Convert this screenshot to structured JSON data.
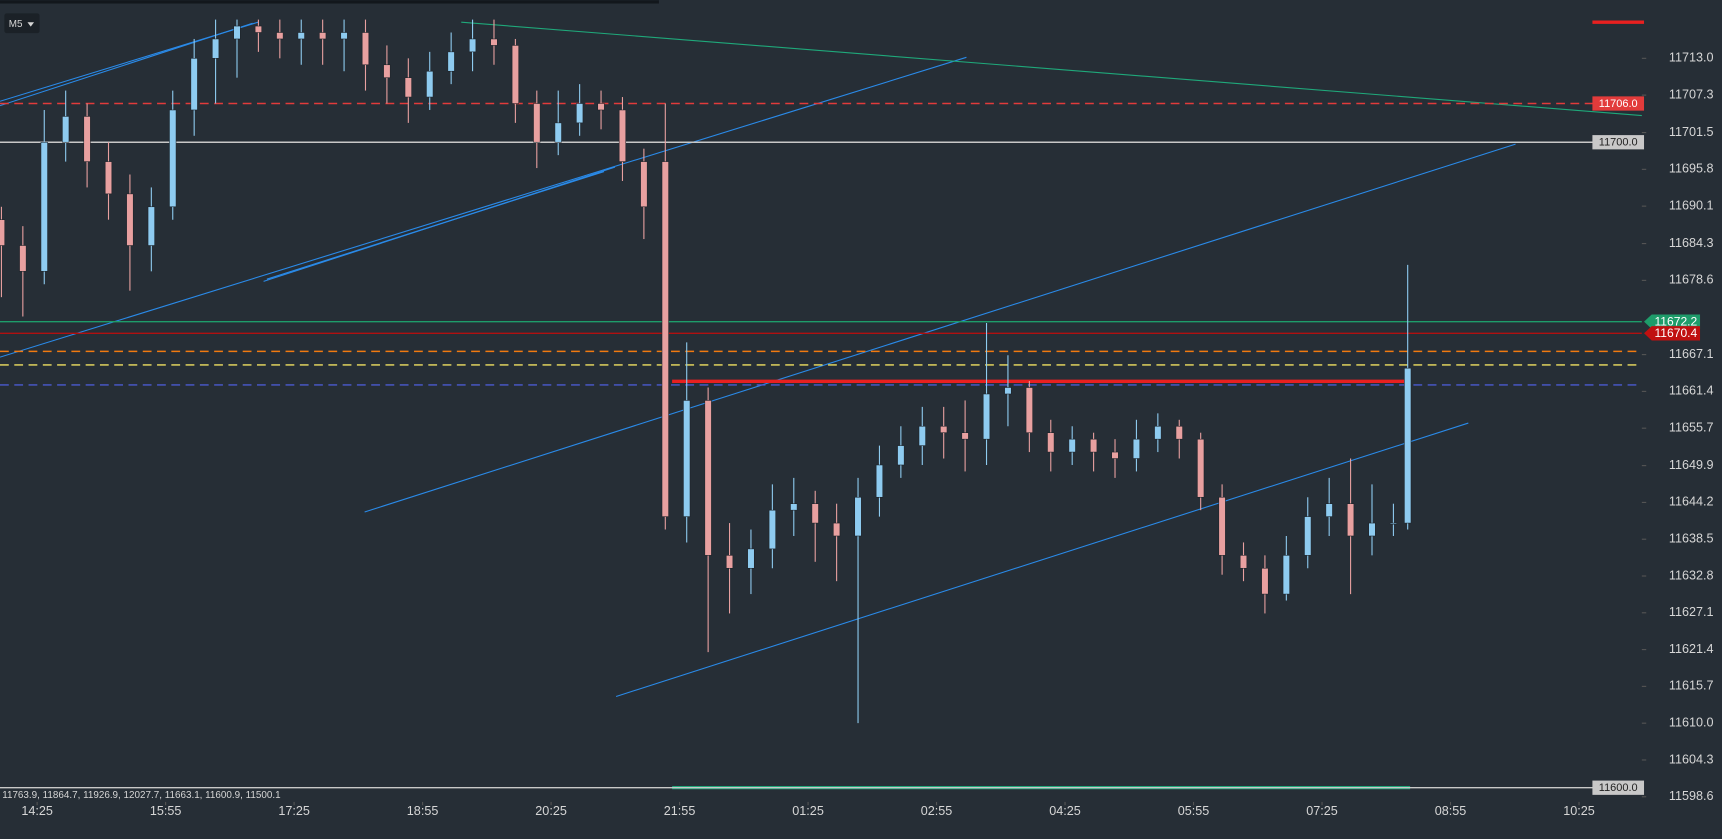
{
  "chart_data": {
    "type": "candlestick",
    "timeframe": "M5",
    "up_color": "#8ecbf0",
    "down_color": "#e8a0a0",
    "x": [
      -5,
      -2,
      1,
      4,
      7,
      10,
      13,
      16,
      19,
      22,
      25,
      28,
      31,
      34,
      37,
      40,
      43,
      46,
      49,
      52,
      55,
      58,
      61,
      64,
      67,
      70,
      73,
      76,
      79,
      82,
      85,
      88,
      91,
      94,
      97,
      100,
      103,
      106,
      109,
      112,
      115,
      118,
      121,
      124,
      127,
      130,
      133,
      136,
      139,
      142,
      145,
      148,
      151,
      154,
      157,
      160,
      163,
      166,
      169,
      172,
      175,
      178,
      181,
      184,
      187,
      190,
      192
    ],
    "open": [
      11688,
      11684,
      11680,
      11700,
      11704,
      11697,
      11692,
      11684,
      11690,
      11705,
      11713,
      11716,
      11718,
      11717,
      11716,
      11717,
      11716,
      11717,
      11712,
      11710,
      11707,
      11711,
      11714,
      11716,
      11715,
      11706,
      11700,
      11703,
      11706,
      11705,
      11697,
      11697,
      11642,
      11660,
      11636,
      11634,
      11637,
      11643,
      11644,
      11641,
      11639,
      11645,
      11650,
      11653,
      11656,
      11655,
      11654,
      11661,
      11662,
      11655,
      11652,
      11654,
      11652,
      11651,
      11654,
      11656,
      11654,
      11645,
      11636,
      11634,
      11630,
      11636,
      11642,
      11644,
      11639,
      11641,
      11641
    ],
    "high": [
      11690,
      11687,
      11705,
      11708,
      11706,
      11700,
      11695,
      11693,
      11708,
      11716,
      11719,
      11719,
      11719,
      11719,
      11719,
      11719,
      11719,
      11719,
      11715,
      11713,
      11714,
      11717,
      11719,
      11719,
      11716,
      11708,
      11708,
      11709,
      11708,
      11707,
      11699,
      11706,
      11669,
      11662,
      11641,
      11640,
      11647,
      11648,
      11646,
      11644,
      11648,
      11653,
      11656,
      11659,
      11659,
      11660,
      11672,
      11667,
      11663,
      11657,
      11656,
      11655,
      11654,
      11657,
      11658,
      11657,
      11655,
      11647,
      11638,
      11636,
      11639,
      11645,
      11648,
      11651,
      11647,
      11644,
      11681
    ],
    "low": [
      11676,
      11673,
      11678,
      11697,
      11693,
      11688,
      11677,
      11680,
      11688,
      11701,
      11706,
      11710,
      11714,
      11713,
      11712,
      11712,
      11711,
      11708,
      11706,
      11703,
      11705,
      11709,
      11711,
      11712,
      11703,
      11696,
      11698,
      11701,
      11702,
      11694,
      11685,
      11640,
      11638,
      11621,
      11627,
      11630,
      11634,
      11639,
      11635,
      11632,
      11610,
      11642,
      11648,
      11650,
      11651,
      11649,
      11650,
      11656,
      11652,
      11649,
      11650,
      11649,
      11648,
      11649,
      11652,
      11651,
      11643,
      11633,
      11632,
      11627,
      11629,
      11634,
      11639,
      11630,
      11636,
      11639,
      11640
    ],
    "close": [
      11684,
      11680,
      11700,
      11704,
      11697,
      11692,
      11684,
      11690,
      11705,
      11713,
      11716,
      11718,
      11717,
      11716,
      11717,
      11716,
      11717,
      11712,
      11710,
      11707,
      11711,
      11714,
      11716,
      11715,
      11706,
      11700,
      11703,
      11706,
      11705,
      11697,
      11690,
      11642,
      11660,
      11636,
      11634,
      11637,
      11643,
      11644,
      11641,
      11639,
      11645,
      11650,
      11653,
      11656,
      11655,
      11654,
      11661,
      11662,
      11655,
      11652,
      11654,
      11652,
      11651,
      11654,
      11656,
      11654,
      11645,
      11636,
      11634,
      11630,
      11636,
      11642,
      11644,
      11639,
      11641,
      11641,
      11665
    ],
    "xlim": [
      -5.2,
      224.8
    ],
    "ylim": [
      11597.8,
      11722
    ],
    "xticks": [
      {
        "value": 0,
        "label": "14:25"
      },
      {
        "value": 18,
        "label": "15:55"
      },
      {
        "value": 36,
        "label": "17:25"
      },
      {
        "value": 54,
        "label": "18:55"
      },
      {
        "value": 72,
        "label": "20:25"
      },
      {
        "value": 90,
        "label": "21:55"
      },
      {
        "value": 108,
        "label": "01:25"
      },
      {
        "value": 126,
        "label": "02:55"
      },
      {
        "value": 144,
        "label": "04:25"
      },
      {
        "value": 162,
        "label": "05:55"
      },
      {
        "value": 180,
        "label": "07:25"
      },
      {
        "value": 198,
        "label": "08:55"
      },
      {
        "value": 216,
        "label": "10:25"
      }
    ],
    "yticks": [
      {
        "value": 11713,
        "label": "11713.0"
      },
      11707.3,
      11701.5,
      11695.8,
      11690.1,
      11684.3,
      11678.6,
      11667.1,
      11661.4,
      11655.7,
      11649.9,
      11644.2,
      11638.5,
      11632.8,
      11627.1,
      11621.4,
      11615.7,
      {
        "value": 11610,
        "label": "11610.0"
      },
      11604.3,
      11598.6
    ],
    "levels": [
      {
        "value": 11706,
        "label": "11706.0",
        "color": "#e23b3b",
        "dashed": true
      },
      {
        "value": 11700,
        "label": "11700.0",
        "color": "#c8c8c8",
        "dashed": false
      },
      {
        "value": 11672.2,
        "color": "#1e9c6a",
        "dashed": false
      },
      {
        "value": 11670.4,
        "color": "#b01010",
        "dashed": false
      },
      {
        "value": 11667.6,
        "color": "#f07a10",
        "dashed": true
      },
      {
        "value": 11665.5,
        "color": "#f0e060",
        "dashed": true
      },
      {
        "value": 11662.4,
        "color": "#4a5ad0",
        "dashed": true
      },
      {
        "value": 11600,
        "label": "11600.0",
        "color": "#c8c8c8",
        "dashed": false
      }
    ],
    "level_tags": [
      {
        "value": 11672.2,
        "color": "#1e9c6a"
      },
      {
        "value": 11670.4,
        "color": "#c01010"
      }
    ],
    "footer_text": "11763.9, 11864.7, 11926.9, 12027.7, 11663.1, 11600.9, 11500.1"
  }
}
